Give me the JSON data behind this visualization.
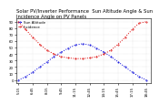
{
  "title": "Solar PV/Inverter Performance  Sun Altitude Angle & Sun Incidence Angle on PV Panels",
  "legend_labels": [
    "Sun Altitude",
    "Incidence"
  ],
  "blue_color": "#0000dd",
  "red_color": "#dd0000",
  "x_ticks": [
    "5:15",
    "6:45",
    "8:15",
    "9:45",
    "11:15",
    "12:45",
    "14:15",
    "15:45",
    "17:15",
    "18:45"
  ],
  "y_ticks": [
    0,
    10,
    20,
    30,
    40,
    50,
    60,
    70,
    80,
    90
  ],
  "ylim": [
    -5,
    95
  ],
  "xlim": [
    5.0,
    19.2
  ],
  "background": "#ffffff",
  "grid_color": "#bbbbbb",
  "title_fontsize": 3.8,
  "axis_fontsize": 2.8,
  "legend_fontsize": 2.8,
  "sun_altitude_x": [
    5.25,
    6.0,
    6.75,
    7.5,
    8.25,
    9.0,
    9.75,
    10.5,
    11.25,
    12.0,
    12.75,
    13.5,
    14.25,
    15.0,
    15.75,
    16.5,
    17.25,
    18.0,
    18.75
  ],
  "sun_altitude_y": [
    0,
    5,
    12,
    20,
    28,
    36,
    43,
    49,
    54,
    56,
    54,
    49,
    43,
    36,
    28,
    20,
    12,
    5,
    0
  ],
  "incidence_x": [
    5.25,
    6.0,
    6.75,
    7.5,
    8.25,
    9.0,
    9.75,
    10.5,
    11.25,
    12.0,
    12.75,
    13.5,
    14.25,
    15.0,
    15.75,
    16.5,
    17.25,
    18.0,
    18.75
  ],
  "incidence_y": [
    90,
    78,
    66,
    55,
    46,
    40,
    36,
    34,
    33,
    33,
    34,
    36,
    40,
    46,
    55,
    66,
    78,
    88,
    90
  ]
}
